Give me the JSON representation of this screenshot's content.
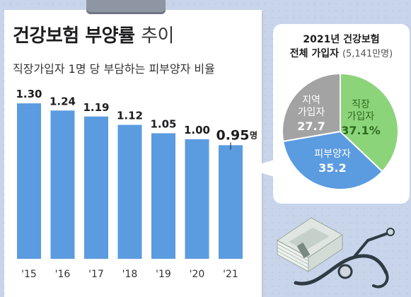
{
  "title_bold": "건강보험 부양률",
  "title_light": "추이",
  "subtitle": "직장가입자 1명 당 부담하는 피부양자 비율",
  "pie_title_line1": "2021년 건강보험",
  "pie_title_line2_bold": "전체 가입자",
  "pie_title_line2_light": "(5,141만명)",
  "chart_data": [
    {
      "type": "bar",
      "title": "건강보험 부양률 추이",
      "subtitle": "직장가입자 1명 당 부담하는 피부양자 비율",
      "categories": [
        "'15",
        "'16",
        "'17",
        "'18",
        "'19",
        "'20",
        "'21"
      ],
      "values": [
        1.3,
        1.24,
        1.19,
        1.12,
        1.05,
        1.0,
        0.95
      ],
      "value_labels": [
        "1.30",
        "1.24",
        "1.19",
        "1.12",
        "1.05",
        "1.00",
        "0.95"
      ],
      "unit": "명",
      "ylim": [
        0,
        1.45
      ],
      "grid": false,
      "color": "#5b9be0"
    },
    {
      "type": "pie",
      "title": "2021년 건강보험 전체 가입자 (5,141만명)",
      "slices": [
        {
          "name": "직장 가입자",
          "label_lines": [
            "직장",
            "가입자"
          ],
          "value": 37.1,
          "value_label": "37.1%",
          "color": "#8cd47a"
        },
        {
          "name": "피부양자",
          "label_lines": [
            "피부양자"
          ],
          "value": 35.2,
          "value_label": "35.2",
          "color": "#5b9be0"
        },
        {
          "name": "지역 가입자",
          "label_lines": [
            "지역",
            "가입자"
          ],
          "value": 27.7,
          "value_label": "27.7",
          "color": "#a3a3a3"
        }
      ]
    }
  ]
}
